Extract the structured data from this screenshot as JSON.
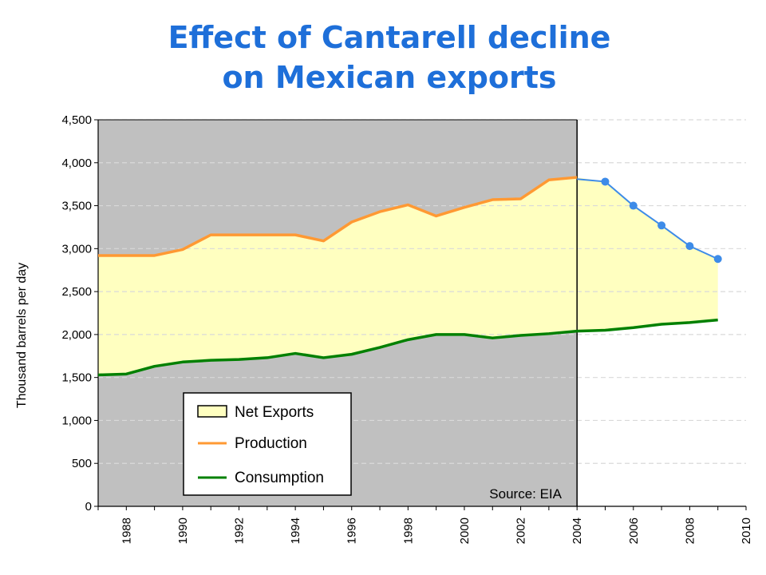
{
  "chart_data": {
    "type": "area",
    "title_lines": [
      "Effect of Cantarell decline",
      "on Mexican exports"
    ],
    "ylabel": "Thousand barrels per day",
    "xlabel": "",
    "ylim": [
      0,
      4500
    ],
    "yticks": [
      0,
      500,
      1000,
      1500,
      2000,
      2500,
      3000,
      3500,
      4000,
      4500
    ],
    "ytick_labels": [
      "0",
      "500",
      "1,000",
      "1,500",
      "2,000",
      "2,500",
      "3,000",
      "3,500",
      "4,000",
      "4,500"
    ],
    "xlim": [
      1987,
      2010
    ],
    "xticks": [
      1988,
      1990,
      1992,
      1994,
      1996,
      1998,
      2000,
      2002,
      2004,
      2006,
      2008,
      2010
    ],
    "xtick_labels": [
      "1988",
      "1990",
      "1992",
      "1994",
      "1996",
      "1998",
      "2000",
      "2002",
      "2004",
      "2006",
      "2008",
      "2010"
    ],
    "grid": "horizontal dashed",
    "divider_year": 2004,
    "source": "Source: EIA",
    "legend_position": "bottom-left",
    "legend": [
      {
        "label": "Net Exports",
        "kind": "area",
        "color": "#ffffc0"
      },
      {
        "label": "Production",
        "kind": "line",
        "color": "#ff9933"
      },
      {
        "label": "Consumption",
        "kind": "line",
        "color": "#008000"
      }
    ],
    "series": [
      {
        "name": "Production",
        "color": "#ff9933",
        "x": [
          1987,
          1988,
          1989,
          1990,
          1991,
          1992,
          1993,
          1994,
          1995,
          1996,
          1997,
          1998,
          1999,
          2000,
          2001,
          2002,
          2003,
          2004
        ],
        "values": [
          2920,
          2920,
          2920,
          2990,
          3160,
          3160,
          3160,
          3160,
          3090,
          3310,
          3430,
          3510,
          3380,
          3480,
          3570,
          3580,
          3800,
          3830
        ]
      },
      {
        "name": "Projected production",
        "color": "#3d8be8",
        "marker": "circle",
        "x": [
          2004,
          2005,
          2006,
          2007,
          2008,
          2009
        ],
        "values": [
          3810,
          3780,
          3500,
          3270,
          3030,
          2880
        ]
      },
      {
        "name": "Consumption",
        "color": "#008000",
        "x": [
          1987,
          1988,
          1989,
          1990,
          1991,
          1992,
          1993,
          1994,
          1995,
          1996,
          1997,
          1998,
          1999,
          2000,
          2001,
          2002,
          2003,
          2004,
          2005,
          2006,
          2007,
          2008,
          2009
        ],
        "values": [
          1530,
          1540,
          1630,
          1680,
          1700,
          1710,
          1730,
          1780,
          1730,
          1770,
          1850,
          1940,
          2000,
          2000,
          1960,
          1990,
          2010,
          2040,
          2050,
          2080,
          2120,
          2140,
          2170
        ]
      }
    ]
  }
}
